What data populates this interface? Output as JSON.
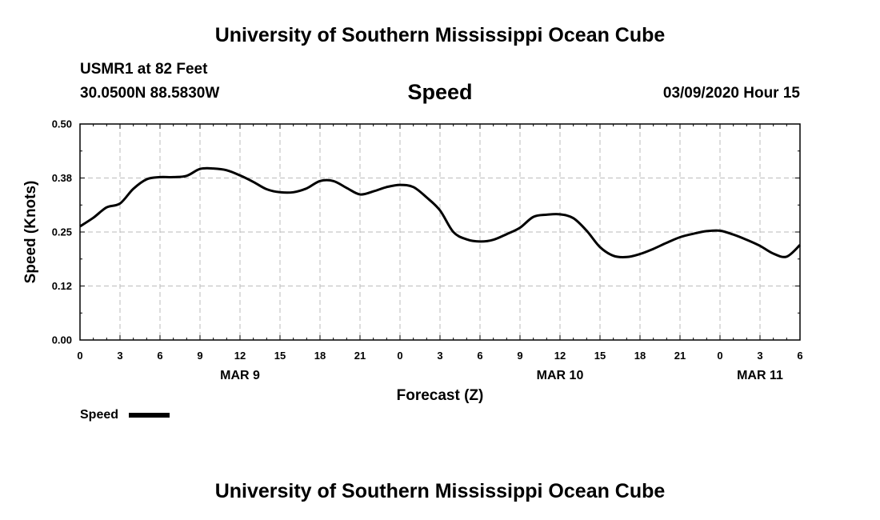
{
  "header": {
    "title": "University of Southern Mississippi Ocean Cube",
    "station": "USMR1 at 82 Feet",
    "coords": "30.0500N 88.5830W",
    "variable": "Speed",
    "datetime": "03/09/2020 Hour 15"
  },
  "footer": {
    "title": "University of Southern Mississippi Ocean Cube"
  },
  "legend": {
    "label": "Speed",
    "color": "#000000"
  },
  "chart_data": {
    "type": "line",
    "xlabel": "Forecast (Z)",
    "ylabel": "Speed (Knots)",
    "ylim": [
      0,
      0.5
    ],
    "y_ticks": [
      "0.00",
      "0.12",
      "0.25",
      "0.38",
      "0.50"
    ],
    "xlim": [
      0,
      54
    ],
    "x_ticks": [
      "0",
      "3",
      "6",
      "9",
      "12",
      "15",
      "18",
      "21",
      "0",
      "3",
      "6",
      "9",
      "12",
      "15",
      "18",
      "21",
      "0",
      "3",
      "6"
    ],
    "date_labels": [
      {
        "label": "MAR 9",
        "hour": 12
      },
      {
        "label": "MAR 10",
        "hour": 36
      },
      {
        "label": "MAR 11",
        "hour": 51
      }
    ],
    "grid": true,
    "series": [
      {
        "name": "Speed",
        "color": "#000000",
        "x": [
          0,
          1,
          2,
          3,
          4,
          5,
          6,
          7,
          8,
          9,
          10,
          11,
          12,
          13,
          14,
          15,
          16,
          17,
          18,
          19,
          20,
          21,
          22,
          23,
          24,
          25,
          26,
          27,
          28,
          29,
          30,
          31,
          32,
          33,
          34,
          35,
          36,
          37,
          38,
          39,
          40,
          41,
          42,
          43,
          44,
          45,
          46,
          47,
          48,
          49,
          50,
          51,
          52,
          53,
          54
        ],
        "values": [
          0.263,
          0.283,
          0.307,
          0.316,
          0.35,
          0.372,
          0.377,
          0.377,
          0.38,
          0.396,
          0.397,
          0.393,
          0.381,
          0.366,
          0.349,
          0.342,
          0.342,
          0.351,
          0.368,
          0.368,
          0.352,
          0.337,
          0.344,
          0.354,
          0.359,
          0.354,
          0.33,
          0.3,
          0.25,
          0.233,
          0.228,
          0.232,
          0.245,
          0.26,
          0.285,
          0.29,
          0.291,
          0.282,
          0.253,
          0.215,
          0.195,
          0.192,
          0.199,
          0.211,
          0.225,
          0.238,
          0.246,
          0.252,
          0.253,
          0.244,
          0.232,
          0.218,
          0.2,
          0.193,
          0.22
        ]
      }
    ]
  }
}
